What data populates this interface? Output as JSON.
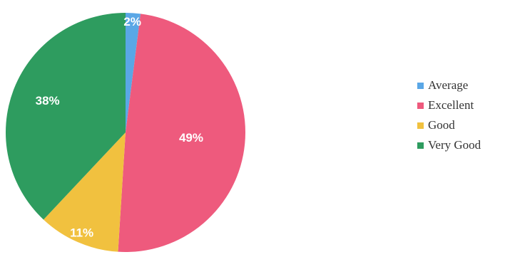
{
  "chart_data": {
    "type": "pie",
    "categories": [
      "Average",
      "Excellent",
      "Good",
      "Very Good"
    ],
    "values": [
      2,
      49,
      11,
      38
    ],
    "labels": [
      "2%",
      "49%",
      "11%",
      "38%"
    ],
    "colors": [
      "#5aa7e6",
      "#ee5a7d",
      "#f1c13f",
      "#2e9c5f"
    ],
    "legend_position": "right",
    "start": "top",
    "direction": "clockwise"
  }
}
